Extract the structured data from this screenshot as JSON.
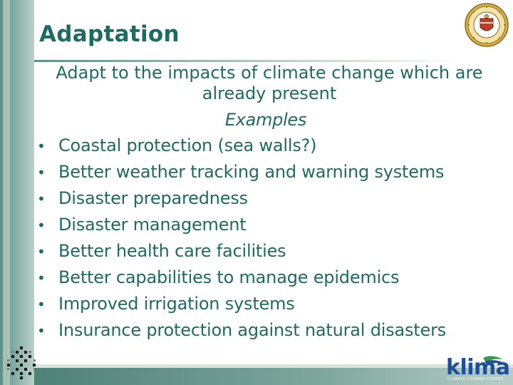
{
  "slide": {
    "title": "Adaptation",
    "subtitle": "Adapt to the impacts of climate change which are already present",
    "examples_heading": "Examples",
    "bullets": [
      "Coastal protection (sea walls?)",
      "Better weather tracking and warning systems",
      "Disaster preparedness",
      "Disaster management",
      "Better health care facilities",
      "Better capabilities to manage epidemics",
      "Improved irrigation systems",
      "Insurance protection against natural disasters"
    ],
    "bullet_glyph": "•"
  },
  "branding": {
    "logo_text": "klima",
    "logo_subtext": "CLIMATE CHANGE CENTER",
    "seal_icon": "university-seal-icon",
    "corner_icon": "pattern-mark-icon"
  },
  "colors": {
    "text": "#1e6b63",
    "band": "#5d8f87",
    "logo_blue": "#1f4f9a",
    "logo_green": "#3a9a4a"
  }
}
